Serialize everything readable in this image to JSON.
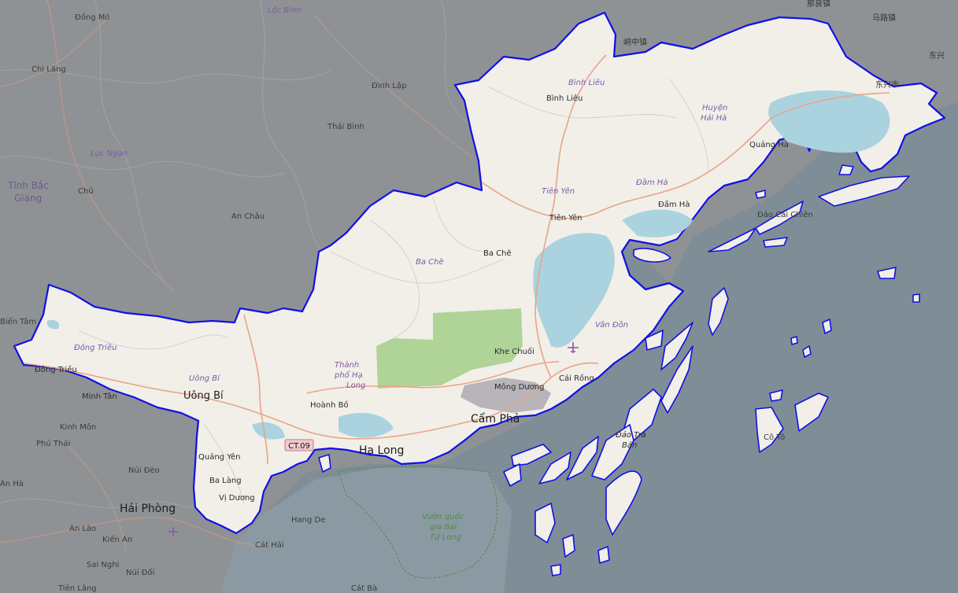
{
  "map": {
    "colors": {
      "background_land": "#8f9295",
      "sea": "#7f8d96",
      "province_fill": "#f2efe9",
      "province_border": "#1010e6",
      "water": "#aad3df",
      "forest": "#a8cf8e",
      "industrial": "#b9b4b9",
      "road_major": "#f2a58a",
      "road_minor": "#ffffff"
    },
    "labels": {
      "dong_mo": "Đồng Mỏ",
      "loc_binh": "Lộc Bình",
      "chi_lang": "Chi Lăng",
      "dinh_lap": "Đình Lập",
      "thai_binh": "Thái Bình",
      "luc_ngan": "Lục Ngạn",
      "tinh_bac_giang_1": "Tỉnh Bắc",
      "tinh_bac_giang_2": "Giang",
      "chu": "Chũ",
      "an_chau": "An Châu",
      "bien_tam": "Biển Tâm",
      "na_luong": "那良镇",
      "ma_lu": "马路镇",
      "dong_zhong": "峒中镇",
      "dong_xing": "东兴市",
      "dong_xing_short": "东兴",
      "binh_lieu_district": "Bình Liêu",
      "binh_lieu_town": "Bình Liêu",
      "huyen_hai_ha_1": "Huyện",
      "huyen_hai_ha_2": "Hải Hà",
      "quang_ha": "Quảng Hà",
      "tien_yen_district": "Tiên Yên",
      "dam_ha_district": "Đầm Hà",
      "dam_ha_town": "Đầm Hà",
      "tien_yen_town": "Tiên Yên",
      "dao_cai_chien": "Đảo Cái Chiên",
      "ba_che_district": "Ba Chẽ",
      "ba_che_town": "Ba Chẽ",
      "van_don": "Vân Đồn",
      "khe_chuoi": "Khe Chuối",
      "cai_rong": "Cái Rồng",
      "mong_duong": "Mông Dương",
      "thanh_pho_ha_long_1": "Thành",
      "thanh_pho_ha_long_2": "phố Hạ",
      "thanh_pho_ha_long_3": "Long",
      "dong_trieu_district": "Đông Triều",
      "dong_trieu_town": "Đông Triều",
      "uong_bi_district": "Uông Bí",
      "uong_bi_city": "Uông Bí",
      "minh_tan": "Minh Tân",
      "hoanh_bo": "Hoành Bồ",
      "cam_pha": "Cẩm Phả",
      "ha_long": "Hạ Long",
      "road_shield": "CT.09",
      "kinh_mon": "Kinh Môn",
      "phu_thai": "Phú Thái",
      "quang_yen": "Quảng Yên",
      "ba_lang": "Ba Làng",
      "nui_deo": "Núi Đèo",
      "vi_duong": "Vị Dương",
      "hai_phong": "Hải Phòng",
      "an_hai": "An Hà",
      "an_lao": "An Lão",
      "kien_an": "Kiến An",
      "hang_de": "Hang De",
      "cat_hai": "Cát Hải",
      "sai_nghi": "Sai Nghi",
      "nui_doi": "Núi Đối",
      "tien_lang": "Tiên Lãng",
      "cat_ba": "Cát Bà",
      "vuon_quoc_gia_1": "Vườn quốc",
      "vuon_quoc_gia_2": "gia Bái",
      "vuon_quoc_gia_3": "Tử Long",
      "dao_tra_ban_1": "Đảo Trà",
      "dao_tra_ban_2": "Bản",
      "co_to": "Cô Tô"
    },
    "icons": [
      "airport-icon"
    ]
  }
}
